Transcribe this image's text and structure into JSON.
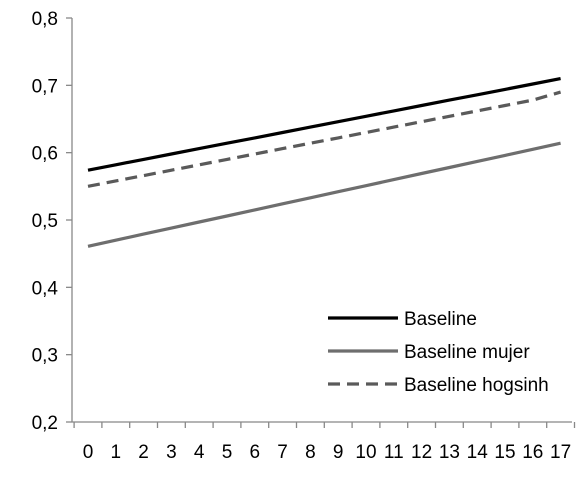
{
  "chart_data": {
    "type": "line",
    "title": "",
    "xlabel": "",
    "ylabel": "",
    "x": [
      0,
      1,
      2,
      3,
      4,
      5,
      6,
      7,
      8,
      9,
      10,
      11,
      12,
      13,
      14,
      15,
      16,
      17
    ],
    "x_tick_labels": [
      "0",
      "1",
      "2",
      "3",
      "4",
      "5",
      "6",
      "7",
      "8",
      "9",
      "10",
      "11",
      "12",
      "13",
      "14",
      "15",
      "16",
      "17"
    ],
    "ylim": [
      0.2,
      0.8
    ],
    "y_ticks": [
      0.2,
      0.3,
      0.4,
      0.5,
      0.6,
      0.7,
      0.8
    ],
    "y_tick_labels": [
      "0,2",
      "0,3",
      "0,4",
      "0,5",
      "0,6",
      "0,7",
      "0,8"
    ],
    "grid": false,
    "legend_position": "bottom-right",
    "series": [
      {
        "name": "Baseline",
        "color": "#000000",
        "dash": "solid",
        "values": [
          0.574,
          0.582,
          0.59,
          0.598,
          0.606,
          0.614,
          0.622,
          0.63,
          0.638,
          0.646,
          0.654,
          0.662,
          0.67,
          0.678,
          0.686,
          0.694,
          0.702,
          0.71
        ]
      },
      {
        "name": "Baseline mujer",
        "color": "#6e6e6e",
        "dash": "solid",
        "values": [
          0.461,
          0.47,
          0.479,
          0.488,
          0.497,
          0.506,
          0.515,
          0.524,
          0.533,
          0.542,
          0.551,
          0.56,
          0.569,
          0.578,
          0.587,
          0.596,
          0.605,
          0.614
        ]
      },
      {
        "name": "Baseline hogsinh",
        "color": "#5a5a5a",
        "dash": "dashed",
        "values": [
          0.55,
          0.558,
          0.566,
          0.574,
          0.582,
          0.59,
          0.598,
          0.606,
          0.614,
          0.622,
          0.63,
          0.638,
          0.646,
          0.654,
          0.662,
          0.67,
          0.678,
          0.69
        ]
      }
    ]
  }
}
